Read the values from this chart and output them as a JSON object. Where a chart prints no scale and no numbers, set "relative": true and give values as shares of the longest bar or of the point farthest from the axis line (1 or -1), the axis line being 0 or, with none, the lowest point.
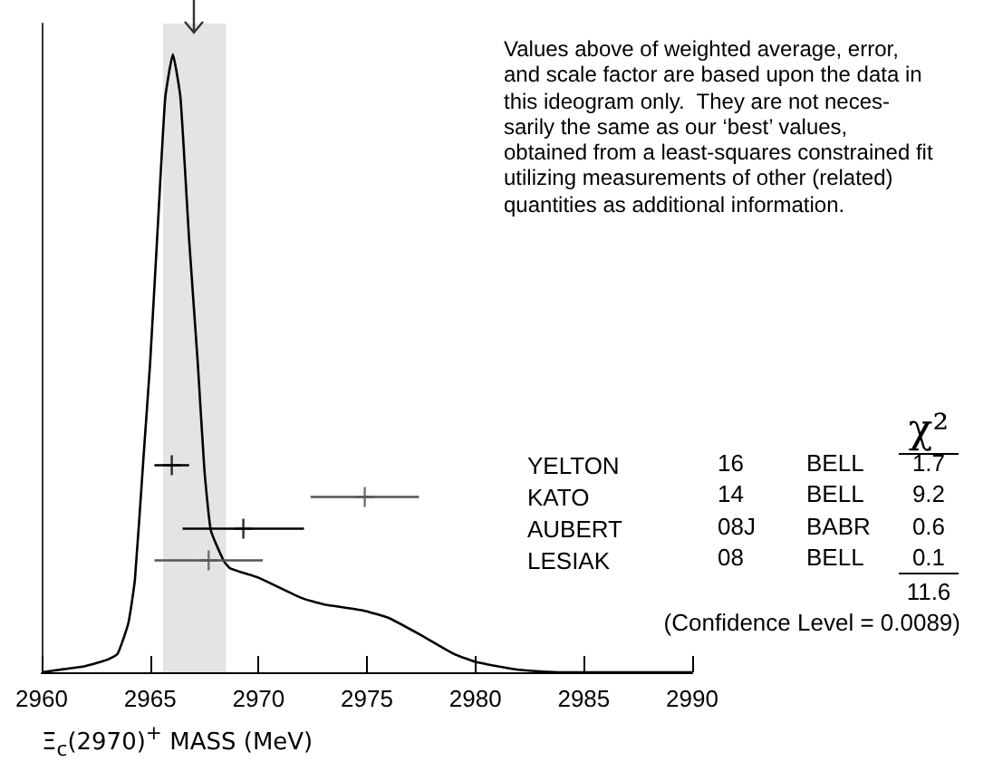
{
  "chart_data": [
    {
      "type": "line",
      "relative": true,
      "xlabel": "Ξ$_{c}$(2970)$^{+}$ MASS (MeV)",
      "color": "#000000",
      "x": [
        2960,
        2961,
        2962,
        2963,
        2963.5,
        2964,
        2964.3,
        2964.7,
        2965,
        2965.4,
        2965.7,
        2966.05,
        2966.4,
        2966.8,
        2967.2,
        2967.5,
        2967.8,
        2968.4,
        2968.7,
        2970,
        2972,
        2973,
        2974.8,
        2976,
        2977.5,
        2979,
        2980,
        2982,
        2984,
        2990
      ],
      "values": [
        0,
        0.005,
        0.01,
        0.02,
        0.03,
        0.08,
        0.15,
        0.35,
        0.5,
        0.75,
        0.93,
        1,
        0.93,
        0.7,
        0.5,
        0.33,
        0.23,
        0.18,
        0.168,
        0.153,
        0.12,
        0.11,
        0.1,
        0.088,
        0.06,
        0.03,
        0.017,
        0.004,
        0,
        0
      ],
      "xlim": [
        2960,
        2990
      ],
      "xticks": [
        2960,
        2965,
        2970,
        2975,
        2980,
        2985,
        2990
      ],
      "bands": [
        {
          "axis": "x",
          "from": 2965.6,
          "to": 2968.5,
          "color": "#e4e4e4"
        }
      ],
      "annotations": [
        "Values above of weighted average, error,\nand scale factor are based upon the data in\nthis ideogram only.  They are not neces-\nsarily the same as our ‘best’ values,\nobtained from a least-squares constrained fit\nutilizing measurements of other (related)\nquantities as additional information."
      ]
    },
    {
      "type": "scatter",
      "orientation": "horizontal",
      "marker": "cross",
      "tick_labels": "y",
      "categories": [
        "YELTON",
        "KATO",
        "AUBERT",
        "LESIAK"
      ],
      "values": [
        2966.0,
        2974.9,
        2969.3,
        2967.7
      ],
      "errors": [
        0.8,
        2.5,
        2.8,
        2.5
      ],
      "colors": [
        "#000000",
        "#555555",
        "#000000",
        "#555555"
      ],
      "xlim": [
        2960,
        2990
      ],
      "xticks": [
        2960,
        2965,
        2970,
        2975,
        2980,
        2985,
        2990
      ],
      "annotations": [
        "χ²",
        "16",
        "BELL",
        "1.7",
        "14",
        "BELL",
        "9.2",
        "08J",
        "BABR",
        "0.6",
        "08",
        "BELL",
        "0.1",
        "11.6",
        "(Confidence Level = 0.0089)"
      ]
    }
  ]
}
